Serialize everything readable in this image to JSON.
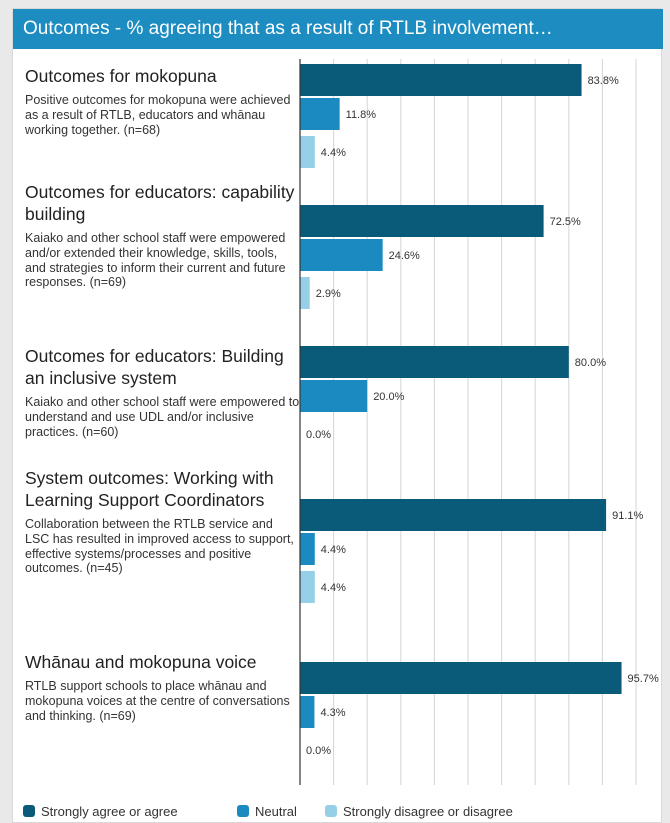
{
  "title": "Outcomes - % agreeing that as a result of RTLB involvement…",
  "colors": {
    "banner": "#1c8cc1",
    "agree": "#0a5a79",
    "neutral": "#1a8ac0",
    "disagree": "#95d0e8"
  },
  "categories": [
    {
      "title": "Outcomes for mokopuna",
      "description": "Positive outcomes for mokopuna were achieved as a result of RTLB, educators and whānau working together. (n=68)"
    },
    {
      "title": "Outcomes for educators: capability building",
      "description": "Kaiako and other school staff were empowered and/or extended their knowledge, skills, tools, and strategies to inform their current and future responses. (n=69)"
    },
    {
      "title": "Outcomes for educators: Building an inclusive system",
      "description": "Kaiako and other school staff were empowered to understand and use UDL and/or inclusive practices. (n=60)"
    },
    {
      "title": "System outcomes: Working with Learning Support Coordinators",
      "description": "Collaboration between the RTLB service and LSC has resulted in improved access to support, effective systems/processes and positive outcomes. (n=45)"
    },
    {
      "title": "Whānau and mokopuna voice",
      "description": "RTLB support schools to place whānau and mokopuna voices at the centre of conversations and thinking. (n=69)"
    }
  ],
  "chart_data": {
    "type": "bar",
    "orientation": "horizontal",
    "title": "Outcomes - % agreeing that as a result of RTLB involvement…",
    "categories": [
      "Outcomes for mokopuna",
      "Outcomes for educators: capability building",
      "Outcomes for educators: Building an inclusive system",
      "System outcomes: Working with Learning Support Coordinators",
      "Whānau and mokopuna voice"
    ],
    "series": [
      {
        "name": "Strongly agree or agree",
        "color": "#0a5a79",
        "values": [
          83.8,
          72.5,
          80.0,
          91.1,
          95.7
        ],
        "labels": [
          "83.8%",
          "72.5%",
          "80.0%",
          "91.1%",
          "95.7%"
        ]
      },
      {
        "name": "Neutral",
        "color": "#1a8ac0",
        "values": [
          11.8,
          24.6,
          20.0,
          4.4,
          4.3
        ],
        "labels": [
          "11.8%",
          "24.6%",
          "20.0%",
          "4.4%",
          "4.3%"
        ]
      },
      {
        "name": "Strongly disagree or disagree",
        "color": "#95d0e8",
        "values": [
          4.4,
          2.9,
          0.0,
          4.4,
          0.0
        ],
        "labels": [
          "4.4%",
          "2.9%",
          "0.0%",
          "4.4%",
          "0.0%"
        ]
      }
    ],
    "xlim": [
      0,
      100
    ],
    "grid": true,
    "legend": "bottom"
  }
}
